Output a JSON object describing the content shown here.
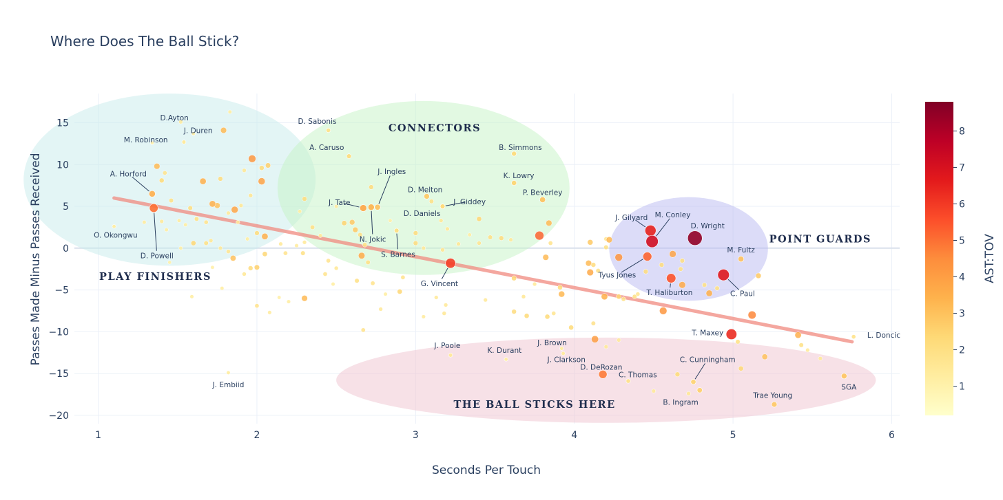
{
  "chart_data": {
    "type": "scatter",
    "title": "Where Does The Ball Stick?",
    "xlabel": "Seconds Per Touch",
    "ylabel": "Passes Made Minus Passes Received",
    "xlim": [
      0.85,
      6.05
    ],
    "ylim": [
      -21,
      18.5
    ],
    "x_ticks": [
      1,
      2,
      3,
      4,
      5,
      6
    ],
    "y_ticks": [
      -20,
      -15,
      -10,
      -5,
      0,
      5,
      10,
      15
    ],
    "colorbar": {
      "title": "AST:TOV",
      "min": 0.2,
      "max": 8.8,
      "ticks": [
        1,
        2,
        3,
        4,
        5,
        6,
        7,
        8
      ]
    },
    "trendline": {
      "x": [
        1.1,
        5.75
      ],
      "y": [
        6.0,
        -11.2
      ]
    },
    "regions": [
      {
        "label": "PLAY FINISHERS",
        "cx": 1.45,
        "cy": 8.2,
        "rx": 0.92,
        "ry": 10.3,
        "color": "#c8ecec"
      },
      {
        "label": "CONNECTORS",
        "cx": 3.05,
        "cy": 7.2,
        "rx": 0.92,
        "ry": 10.4,
        "color": "#c6f3c6"
      },
      {
        "label": "POINT GUARDS",
        "cx": 4.72,
        "cy": -0.1,
        "rx": 0.5,
        "ry": 6.2,
        "color": "#babaf2"
      },
      {
        "label": "THE BALL STICKS HERE",
        "cx": 4.2,
        "cy": -15.8,
        "rx": 1.7,
        "ry": 5.1,
        "color": "#f0c4cf"
      }
    ],
    "region_labels": [
      {
        "text": "PLAY FINISHERS",
        "x": 1.36,
        "y": -3.4
      },
      {
        "text": "CONNECTORS",
        "x": 3.12,
        "y": 14.4
      },
      {
        "text": "POINT GUARDS",
        "x": 5.55,
        "y": 1.1
      },
      {
        "text": "THE BALL STICKS HERE",
        "x": 3.75,
        "y": -18.7
      }
    ],
    "labeled_points": [
      {
        "name": "D.Ayton",
        "x": 1.54,
        "y": 12.7,
        "ast_tov": 1.5,
        "lx": 1.48,
        "ly": 15.6
      },
      {
        "name": "J. Duren",
        "x": 1.6,
        "y": 13.7,
        "ast_tov": 1.2,
        "lx": 1.63,
        "ly": 14.1
      },
      {
        "name": "M. Robinson",
        "x": 1.34,
        "y": 12.6,
        "ast_tov": 1.0,
        "lx": 1.3,
        "ly": 13.0
      },
      {
        "name": "A. Horford",
        "x": 1.34,
        "y": 6.5,
        "ast_tov": 3.5,
        "lx": 1.19,
        "ly": 8.9,
        "line": true
      },
      {
        "name": "O. Okongwu",
        "x": 1.1,
        "y": 2.6,
        "ast_tov": 1.3,
        "lx": 1.11,
        "ly": 1.6
      },
      {
        "name": "D. Powell",
        "x": 1.35,
        "y": 4.8,
        "ast_tov": 5.0,
        "lx": 1.37,
        "ly": -0.9,
        "line": true
      },
      {
        "name": "D. Sabonis",
        "x": 2.45,
        "y": 14.1,
        "ast_tov": 1.9,
        "lx": 2.38,
        "ly": 15.2
      },
      {
        "name": "A. Caruso",
        "x": 2.58,
        "y": 11.0,
        "ast_tov": 2.2,
        "lx": 2.44,
        "ly": 12.1
      },
      {
        "name": "J. Ingles",
        "x": 2.76,
        "y": 4.9,
        "ast_tov": 3.0,
        "lx": 2.85,
        "ly": 9.2,
        "line": true
      },
      {
        "name": "J. Tate",
        "x": 2.67,
        "y": 4.8,
        "ast_tov": 3.8,
        "lx": 2.52,
        "ly": 5.5,
        "line": true
      },
      {
        "name": "N. Jokic",
        "x": 2.72,
        "y": 4.9,
        "ast_tov": 3.4,
        "lx": 2.73,
        "ly": 1.1,
        "line": true
      },
      {
        "name": "D. Melton",
        "x": 3.07,
        "y": 6.2,
        "ast_tov": 2.8,
        "lx": 3.06,
        "ly": 7.0
      },
      {
        "name": "D. Daniels",
        "x": 3.17,
        "y": 5.0,
        "ast_tov": 2.2,
        "lx": 3.04,
        "ly": 4.2
      },
      {
        "name": "J. Giddey",
        "x": 3.17,
        "y": 5.0,
        "ast_tov": 2.2,
        "lx": 3.34,
        "ly": 5.6,
        "line": true
      },
      {
        "name": "S. Barnes",
        "x": 2.88,
        "y": 2.1,
        "ast_tov": 2.1,
        "lx": 2.89,
        "ly": -0.7,
        "line": true
      },
      {
        "name": "B. Simmons",
        "x": 3.62,
        "y": 11.3,
        "ast_tov": 2.3,
        "lx": 3.66,
        "ly": 12.1
      },
      {
        "name": "K. Lowry",
        "x": 3.62,
        "y": 7.8,
        "ast_tov": 2.5,
        "lx": 3.65,
        "ly": 8.7
      },
      {
        "name": "P. Beverley",
        "x": 3.8,
        "y": 5.8,
        "ast_tov": 3.0,
        "lx": 3.8,
        "ly": 6.7
      },
      {
        "name": "G. Vincent",
        "x": 3.22,
        "y": -1.8,
        "ast_tov": 5.9,
        "lx": 3.15,
        "ly": -4.2,
        "line": true
      },
      {
        "name": "J. Gilyard",
        "x": 4.48,
        "y": 2.1,
        "ast_tov": 6.5,
        "lx": 4.36,
        "ly": 3.7,
        "line": true
      },
      {
        "name": "M. Conley",
        "x": 4.49,
        "y": 0.8,
        "ast_tov": 7.2,
        "lx": 4.62,
        "ly": 4.0,
        "line": true
      },
      {
        "name": "D. Wright",
        "x": 4.76,
        "y": 1.2,
        "ast_tov": 8.5,
        "lx": 4.84,
        "ly": 2.7
      },
      {
        "name": "Tyus Jones",
        "x": 4.46,
        "y": -1.0,
        "ast_tov": 5.2,
        "lx": 4.27,
        "ly": -3.2,
        "line": true
      },
      {
        "name": "T. Haliburton",
        "x": 4.61,
        "y": -3.6,
        "ast_tov": 5.5,
        "lx": 4.6,
        "ly": -5.3,
        "line": true
      },
      {
        "name": "C. Paul",
        "x": 4.94,
        "y": -3.2,
        "ast_tov": 6.8,
        "lx": 5.06,
        "ly": -5.4,
        "line": true
      },
      {
        "name": "M. Fultz",
        "x": 5.05,
        "y": -1.3,
        "ast_tov": 3.0,
        "lx": 5.05,
        "ly": -0.2
      },
      {
        "name": "T. Maxey",
        "x": 4.99,
        "y": -10.3,
        "ast_tov": 6.3,
        "lx": 4.84,
        "ly": -10.1
      },
      {
        "name": "L. Doncic",
        "x": 5.76,
        "y": -10.6,
        "ast_tov": 1.8,
        "lx": 5.95,
        "ly": -10.4
      },
      {
        "name": "J. Poole",
        "x": 3.22,
        "y": -12.8,
        "ast_tov": 1.5,
        "lx": 3.2,
        "ly": -11.6
      },
      {
        "name": "K. Durant",
        "x": 3.57,
        "y": -13.3,
        "ast_tov": 1.3,
        "lx": 3.56,
        "ly": -12.2
      },
      {
        "name": "J. Brown",
        "x": 3.92,
        "y": -12.0,
        "ast_tov": 1.3,
        "lx": 3.86,
        "ly": -11.3
      },
      {
        "name": "J. Clarkson",
        "x": 3.93,
        "y": -12.6,
        "ast_tov": 1.4,
        "lx": 3.95,
        "ly": -13.3
      },
      {
        "name": "D. DeRozan",
        "x": 4.18,
        "y": -15.1,
        "ast_tov": 4.8,
        "lx": 4.17,
        "ly": -14.2
      },
      {
        "name": "C. Thomas",
        "x": 4.34,
        "y": -15.9,
        "ast_tov": 1.9,
        "lx": 4.4,
        "ly": -15.1
      },
      {
        "name": "J. Embiid",
        "x": 1.82,
        "y": -14.9,
        "ast_tov": 1.3,
        "lx": 1.82,
        "ly": -16.3
      },
      {
        "name": "C. Cunningham",
        "x": 4.75,
        "y": -16.0,
        "ast_tov": 2.5,
        "lx": 4.84,
        "ly": -13.3,
        "line": true
      },
      {
        "name": "B. Ingram",
        "x": 4.79,
        "y": -17.0,
        "ast_tov": 2.6,
        "lx": 4.67,
        "ly": -18.4
      },
      {
        "name": "Trae Young",
        "x": 5.26,
        "y": -18.7,
        "ast_tov": 2.8,
        "lx": 5.25,
        "ly": -17.6
      },
      {
        "name": "SGA",
        "x": 5.7,
        "y": -15.3,
        "ast_tov": 2.9,
        "lx": 5.73,
        "ly": -16.6
      }
    ],
    "points": [
      [
        1.52,
        15.1,
        1.4
      ],
      [
        1.83,
        16.3,
        1.3
      ],
      [
        1.79,
        14.1,
        3.2
      ],
      [
        1.37,
        9.8,
        3.2
      ],
      [
        1.42,
        9.0,
        1.8
      ],
      [
        1.4,
        8.1,
        2.3
      ],
      [
        1.66,
        8.0,
        3.5
      ],
      [
        1.77,
        8.3,
        2.2
      ],
      [
        1.46,
        5.7,
        2.0
      ],
      [
        1.75,
        5.1,
        3.0
      ],
      [
        1.72,
        5.3,
        3.5
      ],
      [
        1.86,
        4.6,
        3.8
      ],
      [
        1.58,
        4.8,
        2.1
      ],
      [
        1.62,
        3.5,
        2.0
      ],
      [
        1.68,
        3.1,
        1.8
      ],
      [
        1.51,
        3.3,
        1.4
      ],
      [
        1.4,
        3.2,
        1.5
      ],
      [
        1.55,
        2.8,
        1.3
      ],
      [
        1.29,
        3.1,
        1.4
      ],
      [
        1.43,
        2.2,
        1.3
      ],
      [
        1.6,
        0.6,
        2.4
      ],
      [
        1.68,
        0.6,
        2.0
      ],
      [
        1.71,
        0.9,
        1.6
      ],
      [
        1.77,
        0.0,
        1.5
      ],
      [
        1.82,
        -0.4,
        1.7
      ],
      [
        1.85,
        -1.2,
        3.0
      ],
      [
        1.52,
        0.0,
        1.2
      ],
      [
        1.45,
        -1.7,
        1.1
      ],
      [
        1.72,
        -2.3,
        1.2
      ],
      [
        1.92,
        -3.1,
        1.6
      ],
      [
        1.96,
        -2.4,
        2.2
      ],
      [
        2.0,
        -2.3,
        2.6
      ],
      [
        2.05,
        -0.7,
        2.4
      ],
      [
        2.0,
        1.8,
        2.2
      ],
      [
        2.05,
        1.4,
        3.5
      ],
      [
        1.97,
        10.7,
        4.2
      ],
      [
        2.03,
        9.6,
        2.3
      ],
      [
        2.07,
        9.9,
        2.6
      ],
      [
        2.03,
        8.0,
        3.9
      ],
      [
        1.92,
        9.3,
        1.6
      ],
      [
        1.96,
        6.3,
        1.7
      ],
      [
        1.9,
        5.1,
        1.6
      ],
      [
        1.82,
        4.2,
        1.5
      ],
      [
        1.88,
        3.1,
        1.4
      ],
      [
        1.94,
        1.1,
        1.3
      ],
      [
        2.15,
        0.5,
        1.5
      ],
      [
        2.25,
        0.3,
        1.4
      ],
      [
        2.3,
        0.7,
        1.5
      ],
      [
        2.18,
        -0.6,
        1.8
      ],
      [
        2.29,
        -0.6,
        2.0
      ],
      [
        2.3,
        5.9,
        2.2
      ],
      [
        2.35,
        2.5,
        2.0
      ],
      [
        2.4,
        1.5,
        1.5
      ],
      [
        2.45,
        -1.5,
        1.8
      ],
      [
        2.5,
        -2.4,
        1.6
      ],
      [
        2.43,
        -3.1,
        1.8
      ],
      [
        2.3,
        -6.0,
        3.2
      ],
      [
        2.0,
        -6.9,
        1.8
      ],
      [
        2.08,
        -7.7,
        1.4
      ],
      [
        2.2,
        -6.4,
        1.3
      ],
      [
        2.55,
        3.0,
        2.5
      ],
      [
        2.6,
        3.1,
        2.8
      ],
      [
        2.62,
        2.2,
        2.8
      ],
      [
        2.65,
        1.6,
        2.0
      ],
      [
        2.68,
        0.4,
        2.0
      ],
      [
        2.66,
        -0.9,
        3.6
      ],
      [
        2.72,
        7.3,
        2.2
      ],
      [
        2.7,
        -1.7,
        2.0
      ],
      [
        2.63,
        -3.9,
        2.0
      ],
      [
        2.73,
        -4.2,
        1.8
      ],
      [
        2.78,
        -7.3,
        1.5
      ],
      [
        2.67,
        -9.8,
        1.8
      ],
      [
        2.9,
        -5.2,
        2.4
      ],
      [
        2.92,
        -3.5,
        1.8
      ],
      [
        3.0,
        1.8,
        2.2
      ],
      [
        3.0,
        0.6,
        2.2
      ],
      [
        3.05,
        0.0,
        1.5
      ],
      [
        3.1,
        5.6,
        2.0
      ],
      [
        3.16,
        3.3,
        1.6
      ],
      [
        3.2,
        2.3,
        1.6
      ],
      [
        3.17,
        -0.2,
        1.7
      ],
      [
        3.27,
        0.5,
        1.6
      ],
      [
        3.13,
        -5.9,
        1.5
      ],
      [
        3.19,
        -6.8,
        1.5
      ],
      [
        3.05,
        -8.2,
        1.4
      ],
      [
        3.18,
        -7.8,
        1.6
      ],
      [
        3.4,
        3.5,
        2.4
      ],
      [
        3.4,
        0.6,
        1.7
      ],
      [
        3.47,
        1.3,
        2.0
      ],
      [
        3.54,
        1.2,
        2.2
      ],
      [
        3.6,
        1.0,
        1.5
      ],
      [
        3.44,
        -6.2,
        1.5
      ],
      [
        3.62,
        -3.6,
        2.4
      ],
      [
        3.68,
        -5.8,
        1.6
      ],
      [
        3.62,
        -7.6,
        2.2
      ],
      [
        3.7,
        -8.1,
        2.3
      ],
      [
        3.78,
        1.5,
        5.2
      ],
      [
        3.84,
        3.0,
        3.2
      ],
      [
        3.85,
        0.6,
        1.8
      ],
      [
        3.82,
        -1.1,
        3.2
      ],
      [
        3.75,
        -4.3,
        1.5
      ],
      [
        3.91,
        -4.7,
        2.3
      ],
      [
        3.92,
        -5.5,
        3.3
      ],
      [
        3.87,
        -7.8,
        1.7
      ],
      [
        3.83,
        -8.2,
        2.3
      ],
      [
        3.98,
        -9.5,
        2.3
      ],
      [
        4.1,
        0.7,
        2.8
      ],
      [
        4.09,
        -1.8,
        3.2
      ],
      [
        4.12,
        -2.0,
        2.2
      ],
      [
        4.1,
        -2.9,
        3.7
      ],
      [
        4.15,
        -2.7,
        2.0
      ],
      [
        4.2,
        0.1,
        2.0
      ],
      [
        4.2,
        1.1,
        1.7
      ],
      [
        4.22,
        1.0,
        3.3
      ],
      [
        4.28,
        -1.1,
        4.3
      ],
      [
        4.19,
        -5.8,
        3.5
      ],
      [
        4.28,
        -5.8,
        2.4
      ],
      [
        4.31,
        -6.1,
        1.9
      ],
      [
        4.12,
        -9.0,
        1.9
      ],
      [
        4.13,
        -10.9,
        4.0
      ],
      [
        4.2,
        -11.8,
        1.5
      ],
      [
        4.28,
        -11.0,
        1.5
      ],
      [
        4.38,
        -5.8,
        2.0
      ],
      [
        4.4,
        -5.5,
        1.7
      ],
      [
        4.45,
        -2.8,
        2.2
      ],
      [
        4.55,
        -2.0,
        2.2
      ],
      [
        4.62,
        -0.7,
        3.8
      ],
      [
        4.67,
        -2.5,
        2.0
      ],
      [
        4.68,
        -1.5,
        2.1
      ],
      [
        4.68,
        -4.4,
        3.7
      ],
      [
        4.56,
        -7.5,
        4.2
      ],
      [
        4.85,
        -5.4,
        3.5
      ],
      [
        4.82,
        -4.4,
        2.0
      ],
      [
        4.9,
        -4.8,
        2.0
      ],
      [
        5.03,
        -11.2,
        2.0
      ],
      [
        5.12,
        -8.0,
        4.6
      ],
      [
        5.16,
        -3.3,
        2.8
      ],
      [
        5.05,
        -14.4,
        2.4
      ],
      [
        5.2,
        -13.0,
        3.0
      ],
      [
        4.65,
        -15.1,
        2.3
      ],
      [
        4.72,
        -17.4,
        1.6
      ],
      [
        4.5,
        -17.1,
        1.5
      ],
      [
        5.41,
        -10.4,
        3.5
      ],
      [
        5.43,
        -11.6,
        2.0
      ],
      [
        5.47,
        -12.2,
        1.5
      ],
      [
        5.55,
        -13.2,
        1.5
      ],
      [
        1.59,
        -5.8,
        1.3
      ],
      [
        1.78,
        -4.8,
        1.3
      ],
      [
        2.14,
        -5.9,
        1.2
      ],
      [
        2.48,
        -4.3,
        1.3
      ],
      [
        2.81,
        -5.5,
        1.3
      ],
      [
        2.27,
        4.4,
        1.3
      ],
      [
        2.5,
        5.0,
        1.4
      ],
      [
        2.84,
        3.3,
        1.2
      ],
      [
        3.34,
        1.6,
        1.3
      ]
    ]
  },
  "colorscale": [
    "#ffffcc",
    "#ffeda0",
    "#fed976",
    "#feb24c",
    "#fd8d3c",
    "#fc4e2a",
    "#e31a1c",
    "#bd0026",
    "#800026"
  ]
}
